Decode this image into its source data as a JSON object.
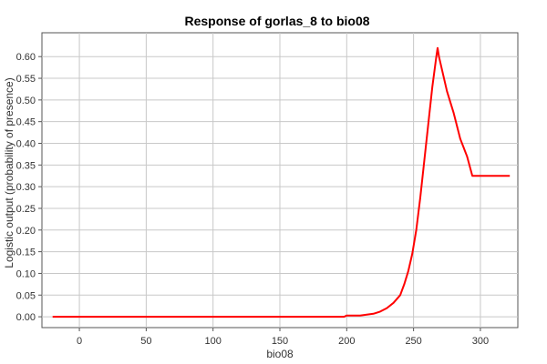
{
  "chart_data": {
    "type": "line",
    "title": "Response of gorlas_8 to bio08",
    "xlabel": "bio08",
    "ylabel": "Logistic output (probability of presence)",
    "xlim": [
      -28,
      328
    ],
    "ylim": [
      -0.025,
      0.655
    ],
    "xticks": [
      0,
      50,
      100,
      150,
      200,
      250,
      300
    ],
    "yticks": [
      0.0,
      0.05,
      0.1,
      0.15,
      0.2,
      0.25,
      0.3,
      0.35,
      0.4,
      0.45,
      0.5,
      0.55,
      0.6
    ],
    "grid": true,
    "series": [
      {
        "color": "#ff0000",
        "x": [
          -20,
          0,
          50,
          100,
          150,
          198,
          200,
          210,
          215,
          220,
          225,
          230,
          235,
          240,
          243,
          246,
          249,
          252,
          255,
          258,
          261,
          264,
          267,
          268,
          269,
          272,
          275,
          280,
          285,
          290,
          294,
          300,
          310,
          322
        ],
        "y": [
          0.0,
          0.0,
          0.0,
          0.0,
          0.0,
          0.0,
          0.003,
          0.003,
          0.005,
          0.007,
          0.012,
          0.02,
          0.032,
          0.05,
          0.075,
          0.105,
          0.145,
          0.2,
          0.275,
          0.36,
          0.445,
          0.53,
          0.6,
          0.62,
          0.6,
          0.56,
          0.52,
          0.47,
          0.41,
          0.37,
          0.325,
          0.325,
          0.325,
          0.325
        ]
      }
    ]
  }
}
